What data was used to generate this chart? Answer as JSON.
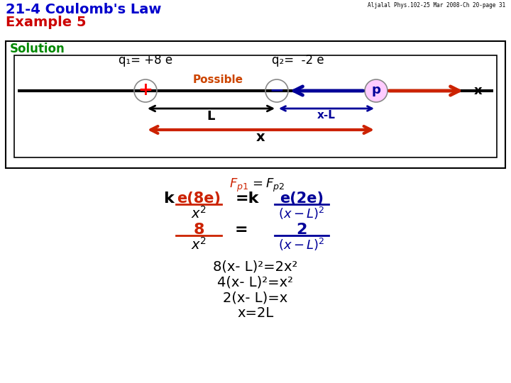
{
  "title_line1": "21-4 Coulomb's Law",
  "title_line2": "Example 5",
  "header_note": "Aljalal Phys.102-25 Mar 2008-Ch 20-page 31",
  "solution_label": "Solution",
  "q1_label": "q₁= +8 e",
  "q2_label": "q₂=  -2 e",
  "possible_label": "Possible",
  "p_label": "p",
  "x_axis_label": "x",
  "L_label": "L",
  "xL_label": "x-L",
  "x_total_label": "x",
  "color_title1": "#0000cc",
  "color_title2": "#cc0000",
  "color_solution": "#008800",
  "color_possible": "#cc4400",
  "color_black": "#000000",
  "color_dark_blue": "#000099",
  "color_red_arrow": "#cc2200",
  "color_p_fill": "#ffccff",
  "eq_step1": "8(x- L)²=2x²",
  "eq_step2": "4(x- L)²=x²",
  "eq_step3": "2(x- L)=x",
  "eq_step4": "x=2L"
}
